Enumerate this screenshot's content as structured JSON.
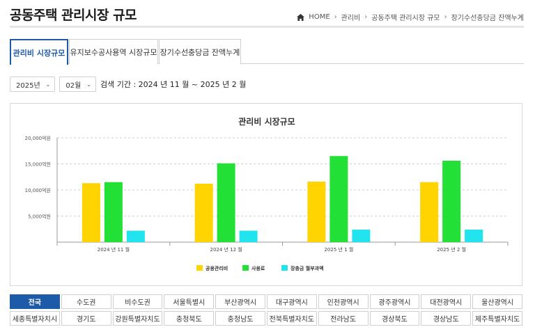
{
  "page": {
    "title": "공동주택 관리시장 규모"
  },
  "breadcrumb": {
    "items": [
      "HOME",
      "관리비",
      "공동주택 관리시장 규모",
      "장기수선충당금 잔액누계"
    ]
  },
  "tabs": [
    {
      "label": "관리비 시장규모",
      "active": true
    },
    {
      "label": "유지보수공사용역 시장규모",
      "active": false
    },
    {
      "label": "장기수선충당금 잔액누계",
      "active": false
    }
  ],
  "filters": {
    "year": "2025년",
    "month": "02월",
    "period_text": "검색 기간 : 2024 년 11 월 ~ 2025 년 2 월"
  },
  "chart_data": {
    "type": "bar",
    "title": "관리비 시장규모",
    "categories": [
      "2024 년 11 월",
      "2024 년 12 월",
      "2025 년 1 월",
      "2025 년 2 월"
    ],
    "series": [
      {
        "name": "공용관리비",
        "color": "#ffd400",
        "values": [
          11300,
          11200,
          11600,
          11500
        ]
      },
      {
        "name": "사용료",
        "color": "#22e035",
        "values": [
          11500,
          15100,
          16500,
          15600
        ]
      },
      {
        "name": "장충금 월부과액",
        "color": "#22e4ef",
        "values": [
          2200,
          2200,
          2400,
          2400
        ]
      }
    ],
    "yticks": [
      5000,
      10000,
      15000,
      20000
    ],
    "ytick_labels": [
      "5,000억원",
      "10,000억원",
      "15,000억원",
      "20,000억원"
    ],
    "ylim": [
      0,
      20000
    ],
    "grid": true,
    "legend_position": "bottom"
  },
  "regions": {
    "row1": [
      {
        "label": "전국",
        "active": true
      },
      {
        "label": "수도권",
        "active": false
      },
      {
        "label": "비수도권",
        "active": false
      },
      {
        "label": "서울특별시",
        "active": false
      },
      {
        "label": "부산광역시",
        "active": false
      },
      {
        "label": "대구광역시",
        "active": false
      },
      {
        "label": "인천광역시",
        "active": false
      },
      {
        "label": "광주광역시",
        "active": false
      },
      {
        "label": "대전광역시",
        "active": false
      },
      {
        "label": "울산광역시",
        "active": false
      }
    ],
    "row2": [
      {
        "label": "세종특별자치시",
        "active": false
      },
      {
        "label": "경기도",
        "active": false
      },
      {
        "label": "강원특별자치도",
        "active": false
      },
      {
        "label": "충청북도",
        "active": false
      },
      {
        "label": "충청남도",
        "active": false
      },
      {
        "label": "전북특별자치도",
        "active": false
      },
      {
        "label": "전라남도",
        "active": false
      },
      {
        "label": "경상북도",
        "active": false
      },
      {
        "label": "경상남도",
        "active": false
      },
      {
        "label": "제주특별자치도",
        "active": false
      }
    ]
  }
}
